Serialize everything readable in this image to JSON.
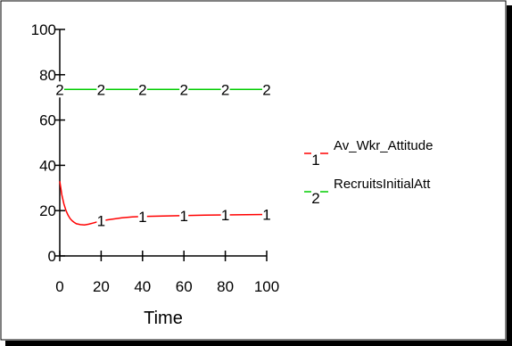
{
  "chart_data": {
    "type": "line",
    "title": "",
    "xlabel": "Time",
    "ylabel": "",
    "xlim": [
      0,
      100
    ],
    "ylim": [
      0,
      100
    ],
    "xticks": [
      "0",
      "20",
      "40",
      "60",
      "80",
      "100"
    ],
    "yticks": [
      "0",
      "20",
      "40",
      "60",
      "80",
      "100"
    ],
    "grid": false,
    "legend_position": "right",
    "series": [
      {
        "name": "Av_Wkr_Attitude",
        "marker": "1",
        "color": "#ff0000",
        "x": [
          0,
          1,
          2,
          3,
          4,
          5,
          6,
          7,
          8,
          10,
          12,
          14,
          16,
          18,
          20,
          25,
          30,
          35,
          40,
          50,
          60,
          70,
          80,
          90,
          100
        ],
        "y": [
          33,
          27,
          23,
          20,
          18,
          16.5,
          15.5,
          14.8,
          14.2,
          13.8,
          13.7,
          14.0,
          14.5,
          15.0,
          15.5,
          16.2,
          16.8,
          17.2,
          17.4,
          17.6,
          17.8,
          18.0,
          18.1,
          18.2,
          18.3
        ],
        "marker_x": [
          20,
          40,
          60,
          80,
          100
        ]
      },
      {
        "name": "RecruitsInitialAtt",
        "marker": "2",
        "color": "#00cc00",
        "x": [
          0,
          100
        ],
        "y": [
          73.5,
          73.5
        ],
        "marker_x": [
          0,
          20,
          40,
          60,
          80,
          100
        ]
      }
    ]
  }
}
